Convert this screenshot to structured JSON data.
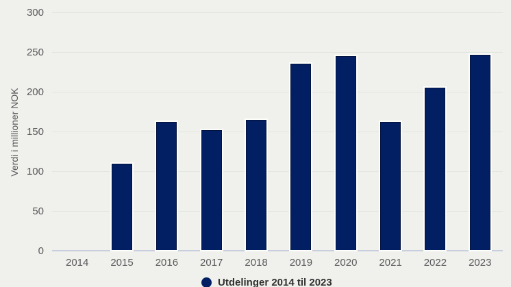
{
  "chart_data": {
    "type": "bar",
    "title": "",
    "xlabel": "",
    "ylabel": "Verdi i millioner NOK",
    "categories": [
      "2014",
      "2015",
      "2016",
      "2017",
      "2018",
      "2019",
      "2020",
      "2021",
      "2022",
      "2023"
    ],
    "values": [
      0,
      109,
      162,
      151,
      164,
      235,
      244,
      162,
      205,
      246
    ],
    "series_name": "Utdelinger 2014 til 2023",
    "ylim": [
      0,
      300
    ],
    "yticks": [
      0,
      50,
      100,
      150,
      200,
      250,
      300
    ],
    "grid": true,
    "legend_position": "bottom",
    "colors": {
      "bar_fill": "#031f63",
      "bar_edge": "#01123f",
      "bar_halo": "#fdfdfb",
      "background": "#f0f1ec",
      "gridline": "#e2e4df",
      "zero_line": "#c9cede",
      "axis_text": "#58595b",
      "legend_text": "#323232",
      "legend_marker": "#031f63"
    }
  }
}
